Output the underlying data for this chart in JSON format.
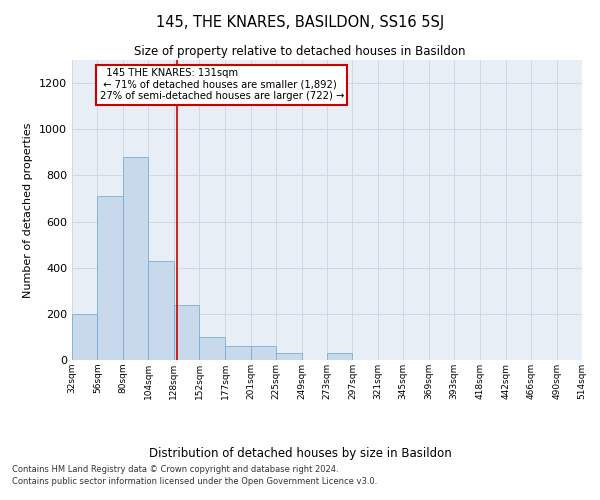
{
  "title": "145, THE KNARES, BASILDON, SS16 5SJ",
  "subtitle": "Size of property relative to detached houses in Basildon",
  "xlabel": "Distribution of detached houses by size in Basildon",
  "ylabel": "Number of detached properties",
  "footnote1": "Contains HM Land Registry data © Crown copyright and database right 2024.",
  "footnote2": "Contains public sector information licensed under the Open Government Licence v3.0.",
  "annotation_line1": "145 THE KNARES: 131sqm",
  "annotation_line2": "← 71% of detached houses are smaller (1,892)",
  "annotation_line3": "27% of semi-detached houses are larger (722) →",
  "bar_color": "#c9d9ec",
  "bar_edge_color": "#7aafd4",
  "grid_color": "#d0d8e4",
  "background_color": "#e8eef6",
  "vline_color": "#cc0000",
  "vline_x": 131,
  "bin_edges": [
    32,
    56,
    80,
    104,
    128,
    152,
    177,
    201,
    225,
    249,
    273,
    297,
    321,
    345,
    369,
    393,
    418,
    442,
    466,
    490,
    514
  ],
  "bin_labels": [
    "32sqm",
    "56sqm",
    "80sqm",
    "104sqm",
    "128sqm",
    "152sqm",
    "177sqm",
    "201sqm",
    "225sqm",
    "249sqm",
    "273sqm",
    "297sqm",
    "321sqm",
    "345sqm",
    "369sqm",
    "393sqm",
    "418sqm",
    "442sqm",
    "466sqm",
    "490sqm",
    "514sqm"
  ],
  "bar_heights": [
    200,
    710,
    880,
    430,
    240,
    100,
    60,
    60,
    30,
    0,
    30,
    0,
    0,
    0,
    0,
    0,
    0,
    0,
    0,
    0
  ],
  "ylim": [
    0,
    1300
  ],
  "yticks": [
    0,
    200,
    400,
    600,
    800,
    1000,
    1200
  ],
  "fig_width": 6.0,
  "fig_height": 5.0,
  "dpi": 100
}
